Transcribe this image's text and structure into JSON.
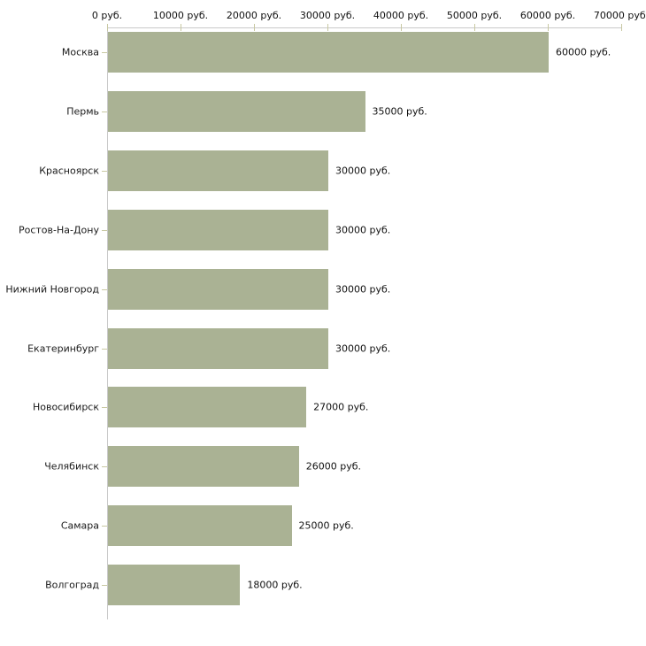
{
  "chart_data": {
    "type": "bar",
    "orientation": "horizontal",
    "title": "",
    "xlabel": "",
    "ylabel": "",
    "categories": [
      "Москва",
      "Пермь",
      "Красноярск",
      "Ростов-На-Дону",
      "Нижний Новгород",
      "Екатеринбург",
      "Новосибирск",
      "Челябинск",
      "Самара",
      "Волгоград"
    ],
    "values": [
      60000,
      35000,
      30000,
      30000,
      30000,
      30000,
      27000,
      26000,
      25000,
      18000
    ],
    "value_labels": [
      "60000 руб.",
      "35000 руб.",
      "30000 руб.",
      "30000 руб.",
      "30000 руб.",
      "30000 руб.",
      "27000 руб.",
      "26000 руб.",
      "25000 руб.",
      "18000 руб."
    ],
    "x_axis": {
      "position": "top",
      "xlim": [
        0,
        70000
      ],
      "ticks": [
        0,
        10000,
        20000,
        30000,
        40000,
        50000,
        60000,
        70000
      ],
      "tick_labels": [
        "0 руб.",
        "10000 руб.",
        "20000 руб.",
        "30000 руб.",
        "40000 руб.",
        "50000 руб.",
        "60000 руб.",
        "70000 руб."
      ]
    },
    "grid": false,
    "legend": false,
    "colors": {
      "bar": "#aab294",
      "axis_line": "#c9c9c9",
      "tick": "#c8c8a2",
      "text": "#111111",
      "background": "#ffffff"
    }
  }
}
